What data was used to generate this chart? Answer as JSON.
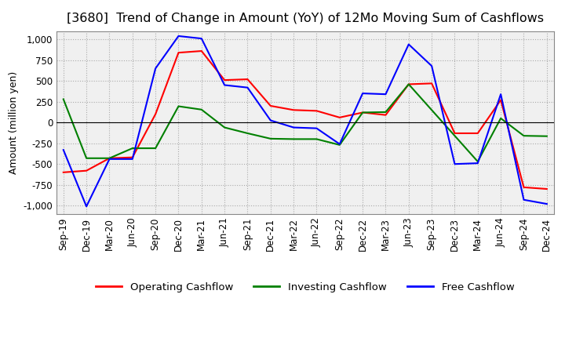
{
  "title": "[3680]  Trend of Change in Amount (YoY) of 12Mo Moving Sum of Cashflows",
  "ylabel": "Amount (million yen)",
  "xlabel": "",
  "ylim": [
    -1100,
    1100
  ],
  "yticks": [
    -1000,
    -750,
    -500,
    -250,
    0,
    250,
    500,
    750,
    1000
  ],
  "labels": [
    "Sep-19",
    "Dec-19",
    "Mar-20",
    "Jun-20",
    "Sep-20",
    "Dec-20",
    "Mar-21",
    "Jun-21",
    "Sep-21",
    "Dec-21",
    "Mar-22",
    "Jun-22",
    "Sep-22",
    "Dec-22",
    "Mar-23",
    "Jun-23",
    "Sep-23",
    "Dec-23",
    "Mar-24",
    "Jun-24",
    "Sep-24",
    "Dec-24"
  ],
  "operating": [
    -600,
    -580,
    -430,
    -420,
    100,
    840,
    860,
    510,
    520,
    200,
    150,
    140,
    60,
    120,
    90,
    460,
    470,
    -130,
    -130,
    270,
    -780,
    -800
  ],
  "investing": [
    280,
    -430,
    -430,
    -310,
    -310,
    195,
    155,
    -60,
    -130,
    -195,
    -200,
    -200,
    -270,
    120,
    125,
    460,
    150,
    -160,
    -470,
    50,
    -160,
    -165
  ],
  "free": [
    -330,
    -1010,
    -440,
    -440,
    650,
    1040,
    1010,
    450,
    420,
    25,
    -60,
    -70,
    -260,
    350,
    340,
    940,
    680,
    -500,
    -490,
    340,
    -930,
    -980
  ],
  "operating_color": "#ff0000",
  "investing_color": "#008000",
  "free_color": "#0000ff",
  "plot_bg_color": "#f0f0f0",
  "fig_bg_color": "#ffffff",
  "grid_color": "#aaaaaa",
  "title_fontsize": 11.5,
  "legend_fontsize": 9.5,
  "axis_fontsize": 8.5,
  "ylabel_fontsize": 9
}
